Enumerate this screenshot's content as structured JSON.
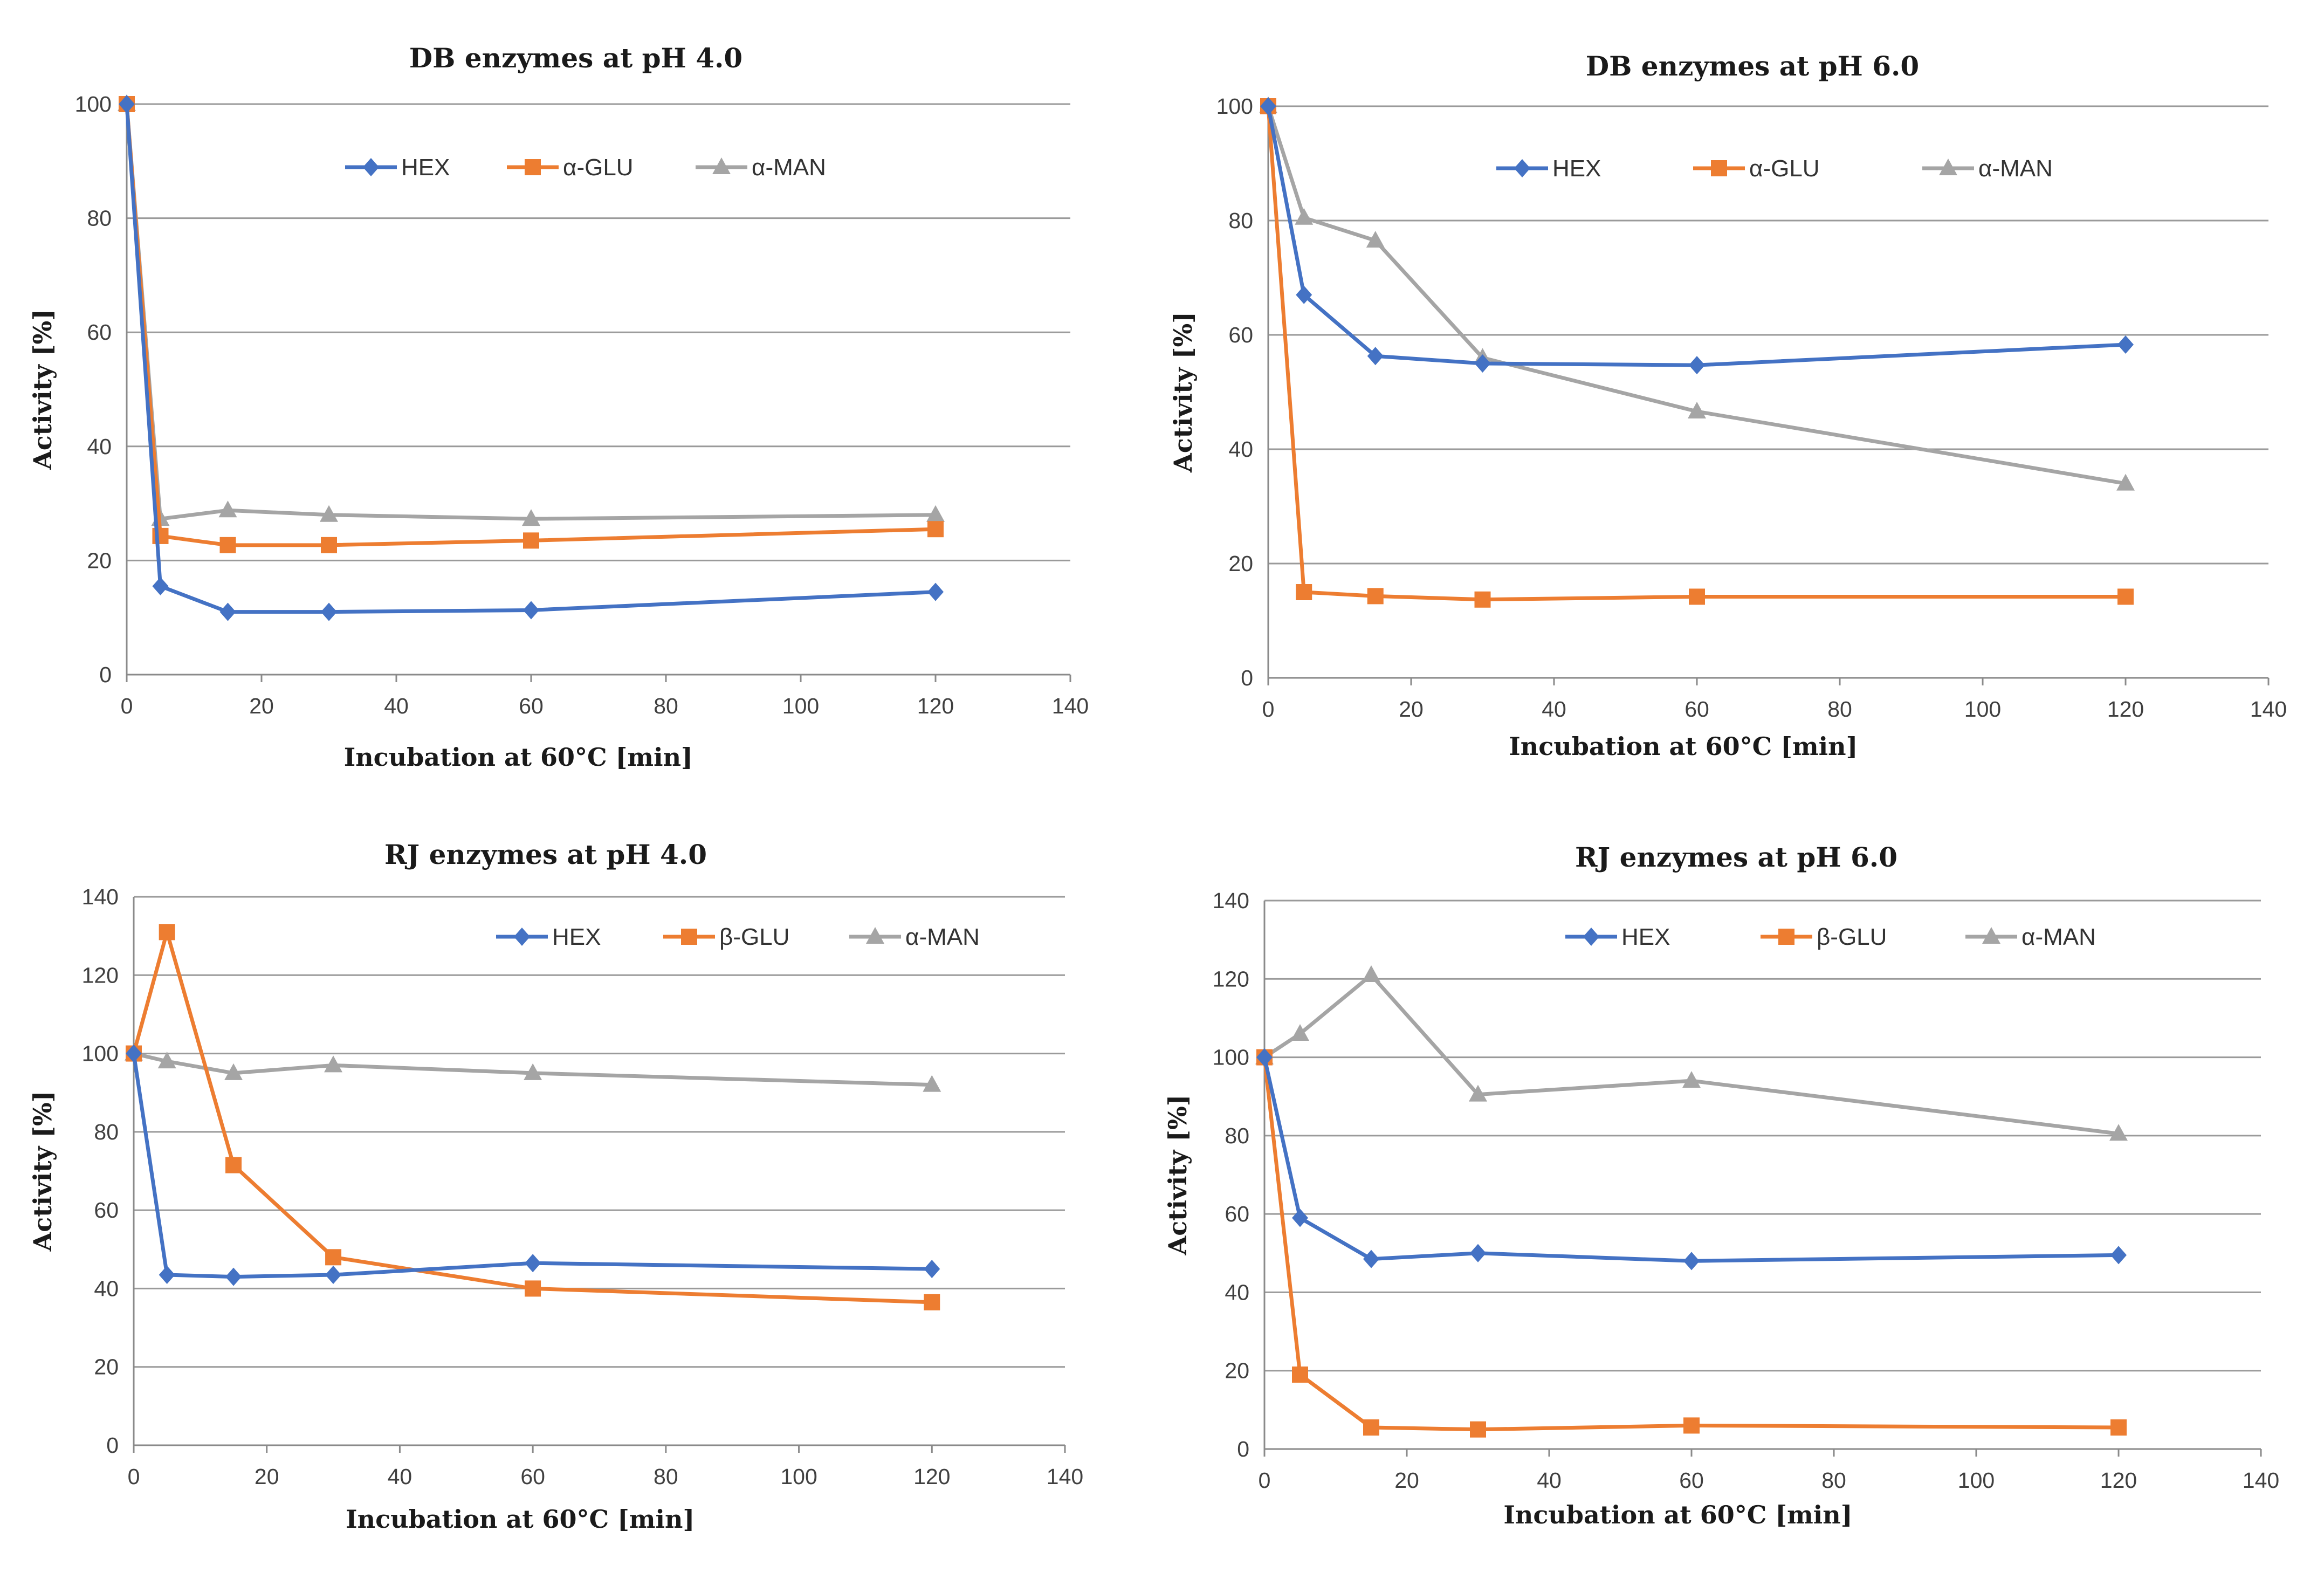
{
  "figure": {
    "palette": {
      "HEX": "#4472C4",
      "GLU": "#ED7D31",
      "MAN": "#A5A5A5"
    }
  },
  "chart_data": [
    {
      "type": "line",
      "title": "DB enzymes at pH 4.0",
      "xlabel": "Incubation  at 60°C [min]",
      "ylabel": "Activity  [%]",
      "xlim": [
        0,
        140
      ],
      "ylim": [
        0,
        100
      ],
      "xticks": [
        "0",
        "20",
        "40",
        "60",
        "80",
        "100",
        "120",
        "140"
      ],
      "yticks": [
        "0",
        "20",
        "40",
        "60",
        "80",
        "100"
      ],
      "grid": true,
      "legend_position": "top-center",
      "x": [
        0,
        5,
        15,
        30,
        60,
        120
      ],
      "series": [
        {
          "name": "HEX",
          "color": "#4472C4",
          "marker": "diamond",
          "values": [
            100,
            15.5,
            11,
            11,
            11.3,
            14.5
          ]
        },
        {
          "name": "α-GLU",
          "color": "#ED7D31",
          "marker": "square",
          "values": [
            100,
            24.3,
            22.7,
            22.7,
            23.5,
            25.5
          ]
        },
        {
          "name": "α-MAN",
          "color": "#A5A5A5",
          "marker": "triangle",
          "values": [
            100,
            27.3,
            28.8,
            28,
            27.3,
            28
          ]
        }
      ]
    },
    {
      "type": "line",
      "title": "DB enzymes at pH 6.0",
      "xlabel": "Incubation  at 60°C [min]",
      "ylabel": "Activity  [%]",
      "xlim": [
        0,
        140
      ],
      "ylim": [
        0,
        100
      ],
      "xticks": [
        "0",
        "20",
        "40",
        "60",
        "80",
        "100",
        "120",
        "140"
      ],
      "yticks": [
        "0",
        "20",
        "40",
        "60",
        "80",
        "100"
      ],
      "grid": true,
      "legend_position": "top-center",
      "x": [
        0,
        5,
        15,
        30,
        60,
        120
      ],
      "series": [
        {
          "name": "HEX",
          "color": "#4472C4",
          "marker": "diamond",
          "values": [
            100,
            67,
            56.3,
            55,
            54.7,
            58.3
          ]
        },
        {
          "name": "α-GLU",
          "color": "#ED7D31",
          "marker": "square",
          "values": [
            100,
            15,
            14.3,
            13.7,
            14.2,
            14.2
          ]
        },
        {
          "name": "α-MAN",
          "color": "#A5A5A5",
          "marker": "triangle",
          "values": [
            100,
            80.5,
            76.5,
            56,
            46.6,
            34
          ]
        }
      ]
    },
    {
      "type": "line",
      "title": "RJ enzymes at pH 4.0",
      "xlabel": "Incubation  at 60°C [min]",
      "ylabel": "Activity  [%]",
      "xlim": [
        0,
        140
      ],
      "ylim": [
        0,
        140
      ],
      "xticks": [
        "0",
        "20",
        "40",
        "60",
        "80",
        "100",
        "120",
        "140"
      ],
      "yticks": [
        "0",
        "20",
        "40",
        "60",
        "80",
        "100",
        "120",
        "140"
      ],
      "grid": true,
      "legend_position": "top-right",
      "x": [
        0,
        5,
        15,
        30,
        60,
        120
      ],
      "series": [
        {
          "name": "HEX",
          "color": "#4472C4",
          "marker": "diamond",
          "values": [
            100,
            43.5,
            43,
            43.5,
            46.5,
            45
          ]
        },
        {
          "name": "β-GLU",
          "color": "#ED7D31",
          "marker": "square",
          "values": [
            100,
            131,
            71.5,
            48,
            40,
            36.5
          ]
        },
        {
          "name": "α-MAN",
          "color": "#A5A5A5",
          "marker": "triangle",
          "values": [
            100,
            98,
            95,
            97,
            95,
            92
          ]
        }
      ]
    },
    {
      "type": "line",
      "title": "RJ enzymes at pH 6.0",
      "xlabel": "Incubation  at 60°C [min]",
      "ylabel": "Activity  [%]",
      "xlim": [
        0,
        140
      ],
      "ylim": [
        0,
        140
      ],
      "xticks": [
        "0",
        "20",
        "40",
        "60",
        "80",
        "100",
        "120",
        "140"
      ],
      "yticks": [
        "0",
        "20",
        "40",
        "60",
        "80",
        "100",
        "120",
        "140"
      ],
      "grid": true,
      "legend_position": "top-center",
      "x": [
        0,
        5,
        15,
        30,
        60,
        120
      ],
      "series": [
        {
          "name": "HEX",
          "color": "#4472C4",
          "marker": "diamond",
          "values": [
            100,
            59,
            48.5,
            50,
            48,
            49.5
          ]
        },
        {
          "name": "β-GLU",
          "color": "#ED7D31",
          "marker": "square",
          "values": [
            100,
            19,
            5.5,
            5,
            6,
            5.5
          ]
        },
        {
          "name": "α-MAN",
          "color": "#A5A5A5",
          "marker": "triangle",
          "values": [
            100,
            106,
            121,
            90.5,
            94,
            80.5
          ]
        }
      ]
    }
  ]
}
